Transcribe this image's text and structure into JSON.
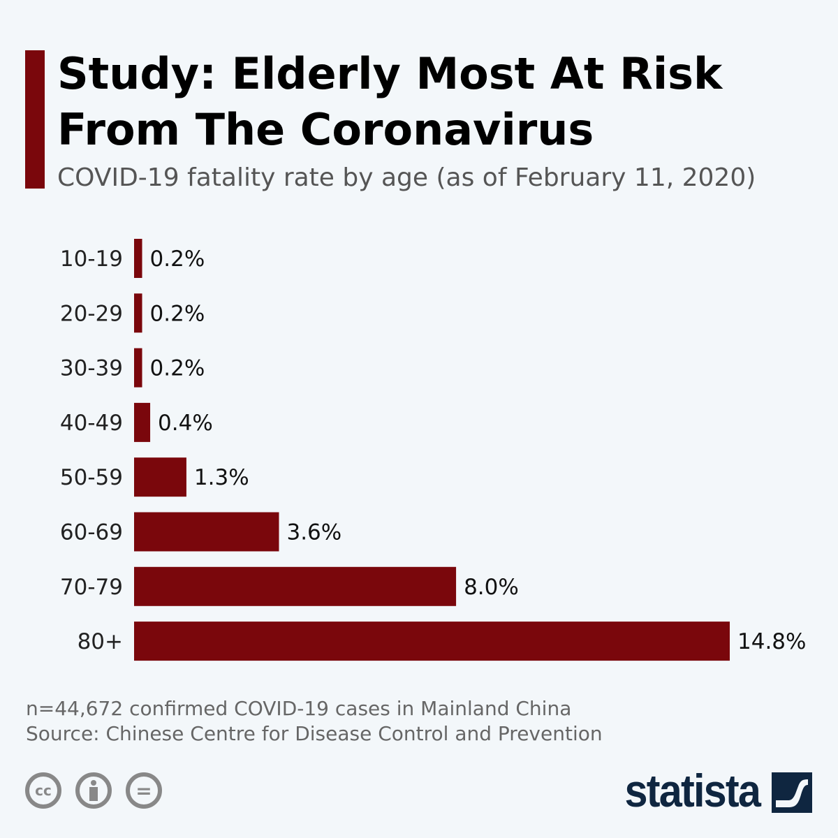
{
  "title": "Study: Elderly Most At Risk From The Coronavirus",
  "subtitle": "COVID-19 fatality rate by age (as of February 11, 2020)",
  "chart_data": {
    "type": "bar",
    "orientation": "horizontal",
    "categories": [
      "10-19",
      "20-29",
      "30-39",
      "40-49",
      "50-59",
      "60-69",
      "70-79",
      "80+"
    ],
    "values": [
      0.2,
      0.2,
      0.2,
      0.4,
      1.3,
      3.6,
      8.0,
      14.8
    ],
    "data_labels": [
      "0.2%",
      "0.2%",
      "0.2%",
      "0.4%",
      "1.3%",
      "3.6%",
      "8.0%",
      "14.8%"
    ],
    "unit": "%",
    "bar_color": "#7a070c",
    "grid": false
  },
  "footer": {
    "note": "n=44,672 confirmed COVID-19 cases in Mainland China",
    "source": "Source: Chinese Centre for Disease Control and Prevention"
  },
  "license_icons": [
    "cc-icon",
    "attribution-icon",
    "no-derivatives-icon"
  ],
  "license_text": {
    "cc": "cc",
    "nd": "="
  },
  "brand": "statista"
}
